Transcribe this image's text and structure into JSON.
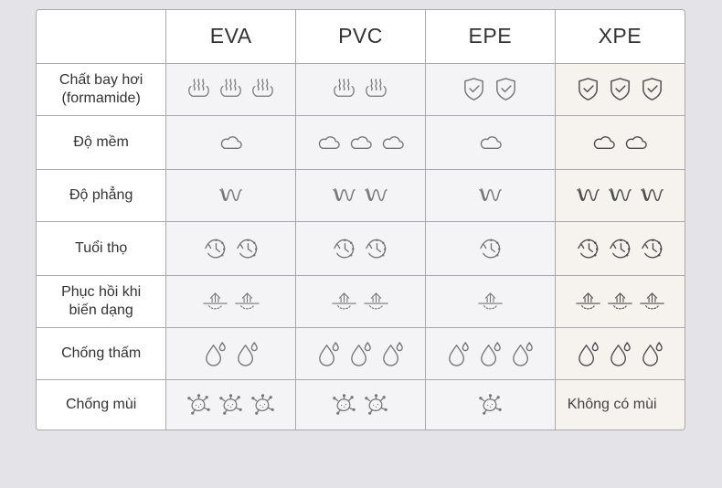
{
  "columns": [
    "EVA",
    "PVC",
    "EPE",
    "XPE"
  ],
  "rows": [
    {
      "label_line1": "Chất bay hơi",
      "label_line2": "(formamide)",
      "icon": "steam-icon",
      "counts": [
        3,
        2,
        2,
        3
      ]
    },
    {
      "label_line1": "Độ mềm",
      "label_line2": "",
      "icon": "cloud-icon",
      "counts": [
        1,
        3,
        1,
        2
      ]
    },
    {
      "label_line1": "Độ phẳng",
      "label_line2": "",
      "icon": "wave-icon",
      "counts": [
        1,
        2,
        1,
        3
      ]
    },
    {
      "label_line1": "Tuổi thọ",
      "label_line2": "",
      "icon": "clock-icon",
      "counts": [
        2,
        2,
        1,
        3
      ]
    },
    {
      "label_line1": "Phục hồi khi",
      "label_line2": "biến dạng",
      "icon": "rebound-icon",
      "counts": [
        2,
        2,
        1,
        3
      ]
    },
    {
      "label_line1": "Chống thấm",
      "label_line2": "",
      "icon": "droplet-icon",
      "counts": [
        2,
        3,
        3,
        3
      ]
    },
    {
      "label_line1": "Chống mùi",
      "label_line2": "",
      "icon": "germ-icon",
      "counts": [
        3,
        2,
        1,
        0
      ]
    }
  ],
  "xpe_odor_text": "Không có mùi",
  "colors": {
    "background": "#e4e3e7",
    "cell": "#f4f4f6",
    "xpe_cell": "#f6f2ed",
    "icon_light": "#767678",
    "icon_dark": "#4d4d4f"
  }
}
